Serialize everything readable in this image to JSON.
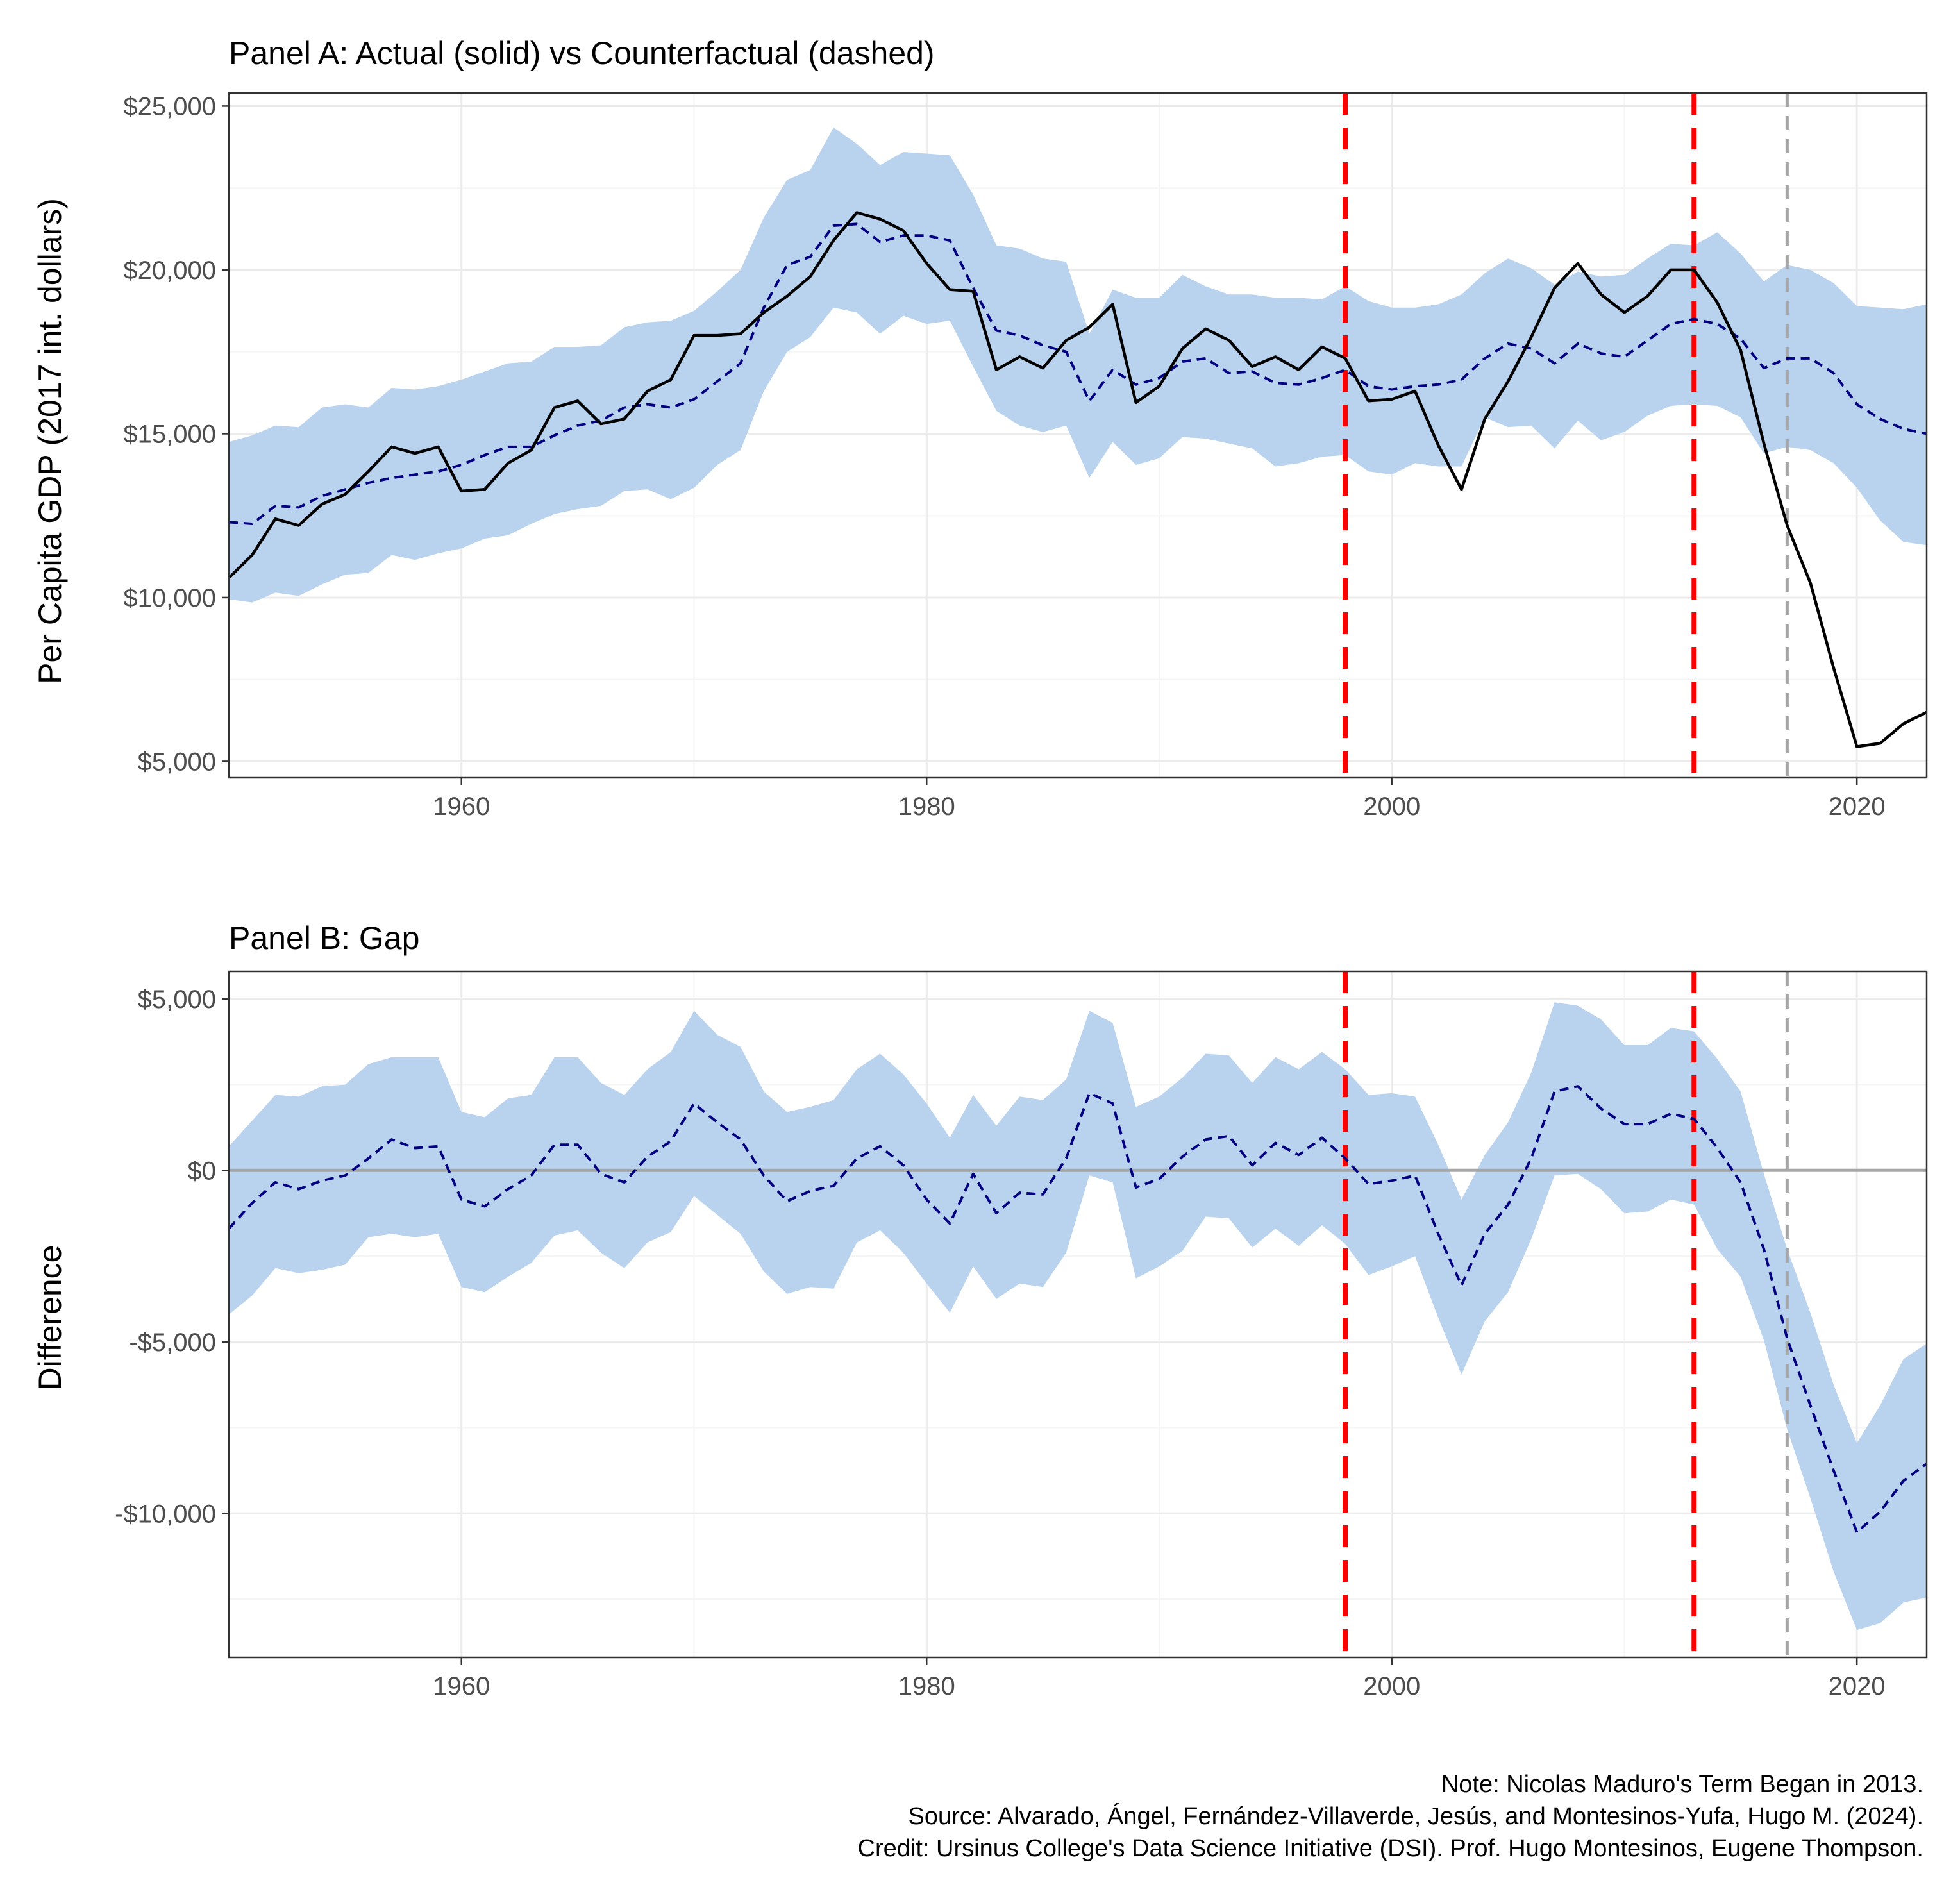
{
  "colors": {
    "actual_line": "#000000",
    "counterfactual_line": "#000080",
    "ci_band": "#b9d3ef",
    "event_line": "#ff0000",
    "marker_line": "#a6a6a6",
    "zero_line": "#a6a6a6",
    "grid_major": "#ebebeb",
    "grid_minor": "#f5f5f5",
    "panel_border": "#333333"
  },
  "caption": {
    "lines": [
      "Note: Nicolas Maduro's Term Began in 2013.",
      "Source: Alvarado, Ángel, Fernández-Villaverde, Jesús, and Montesinos-Yufa, Hugo M. (2024).",
      "Credit: Ursinus College's Data Science Initiative (DSI). Prof. Hugo Montesinos, Eugene Thompson."
    ]
  },
  "chart_data": [
    {
      "type": "line",
      "title": "Panel A: Actual (solid) vs Counterfactual (dashed)",
      "xlabel": "",
      "ylabel": "Per Capita GDP (2017 int. dollars)",
      "xlim": [
        1950,
        2023
      ],
      "ylim": [
        4500,
        25400
      ],
      "x_ticks": [
        1960,
        1980,
        2000,
        2020
      ],
      "x_tick_labels": [
        "1960",
        "1980",
        "2000",
        "2020"
      ],
      "y_ticks": [
        5000,
        10000,
        15000,
        20000,
        25000
      ],
      "y_tick_labels": [
        "$5,000",
        "$10,000",
        "$15,000",
        "$20,000",
        "$25,000"
      ],
      "grid": true,
      "vlines": [
        {
          "x": 1998,
          "color": "#ff0000",
          "style": "dashed",
          "width": "thick"
        },
        {
          "x": 2013,
          "color": "#ff0000",
          "style": "dashed",
          "width": "thick"
        },
        {
          "x": 2017,
          "color": "#a6a6a6",
          "style": "dashed",
          "width": "thin"
        }
      ],
      "x": [
        1950,
        1951,
        1952,
        1953,
        1954,
        1955,
        1956,
        1957,
        1958,
        1959,
        1960,
        1961,
        1962,
        1963,
        1964,
        1965,
        1966,
        1967,
        1968,
        1969,
        1970,
        1971,
        1972,
        1973,
        1974,
        1975,
        1976,
        1977,
        1978,
        1979,
        1980,
        1981,
        1982,
        1983,
        1984,
        1985,
        1986,
        1987,
        1988,
        1989,
        1990,
        1991,
        1992,
        1993,
        1994,
        1995,
        1996,
        1997,
        1998,
        1999,
        2000,
        2001,
        2002,
        2003,
        2004,
        2005,
        2006,
        2007,
        2008,
        2009,
        2010,
        2011,
        2012,
        2013,
        2014,
        2015,
        2016,
        2017,
        2018,
        2019,
        2020,
        2021,
        2022,
        2023
      ],
      "series": [
        {
          "style": "solid",
          "values": [
            10600,
            11300,
            12400,
            12200,
            12850,
            13150,
            13850,
            14600,
            14400,
            14600,
            13250,
            13300,
            14100,
            14500,
            15800,
            16000,
            15300,
            15450,
            16300,
            16650,
            18000,
            18000,
            18050,
            18700,
            19200,
            19800,
            20900,
            21750,
            21550,
            21200,
            20200,
            19400,
            19350,
            16950,
            17350,
            17000,
            17850,
            18250,
            18950,
            15950,
            16450,
            17600,
            18200,
            17850,
            17050,
            17350,
            16950,
            17650,
            17300,
            16000,
            16050,
            16300,
            14650,
            13300,
            15450,
            16600,
            17950,
            19450,
            20200,
            19250,
            18700,
            19200,
            20000,
            20000,
            19000,
            17550,
            14700,
            12200,
            10450,
            7850,
            5450,
            5550,
            6150,
            6500
          ]
        },
        {
          "style": "dashed",
          "values": [
            12300,
            12250,
            12800,
            12750,
            13100,
            13300,
            13500,
            13650,
            13750,
            13850,
            14050,
            14350,
            14600,
            14600,
            14950,
            15250,
            15400,
            15800,
            15900,
            15800,
            16050,
            16600,
            17150,
            18850,
            20150,
            20400,
            21350,
            21400,
            20850,
            21050,
            21050,
            20900,
            19450,
            18150,
            18000,
            17700,
            17500,
            16000,
            16950,
            16500,
            16700,
            17200,
            17300,
            16850,
            16900,
            16550,
            16500,
            16700,
            16950,
            16450,
            16350,
            16450,
            16500,
            16650,
            17300,
            17750,
            17600,
            17150,
            17750,
            17450,
            17350,
            17850,
            18350,
            18500,
            18350,
            17900,
            17000,
            17300,
            17300,
            16850,
            15900,
            15450,
            15150,
            15000
          ]
        }
      ],
      "band": {
        "lower": [
          9950,
          9850,
          10150,
          10050,
          10400,
          10700,
          10750,
          11300,
          11150,
          11350,
          11500,
          11800,
          11900,
          12250,
          12550,
          12700,
          12800,
          13250,
          13300,
          13000,
          13350,
          14050,
          14500,
          16300,
          17500,
          17950,
          18850,
          18700,
          18050,
          18600,
          18350,
          18450,
          17050,
          15700,
          15250,
          15050,
          15250,
          13650,
          14750,
          14050,
          14250,
          14900,
          14850,
          14700,
          14550,
          14000,
          14100,
          14300,
          14350,
          13850,
          13750,
          14100,
          14000,
          14000,
          15500,
          15200,
          15250,
          14550,
          15400,
          14800,
          15050,
          15550,
          15850,
          15900,
          15850,
          15500,
          14400,
          14600,
          14500,
          14100,
          13350,
          12350,
          11700,
          11600
        ],
        "upper": [
          14750,
          14950,
          15250,
          15200,
          15800,
          15900,
          15800,
          16400,
          16350,
          16450,
          16650,
          16900,
          17150,
          17200,
          17650,
          17650,
          17700,
          18250,
          18400,
          18450,
          18750,
          19350,
          20000,
          21600,
          22750,
          23050,
          24350,
          23850,
          23200,
          23600,
          23550,
          23500,
          22300,
          20750,
          20650,
          20350,
          20250,
          18050,
          19400,
          19150,
          19150,
          19850,
          19500,
          19250,
          19250,
          19150,
          19150,
          19100,
          19500,
          19050,
          18850,
          18850,
          18950,
          19250,
          19900,
          20350,
          20050,
          19550,
          19950,
          19800,
          19850,
          20350,
          20800,
          20750,
          21150,
          20500,
          19650,
          20150,
          20000,
          19600,
          18900,
          18850,
          18800,
          18950
        ]
      }
    },
    {
      "type": "line",
      "title": "Panel B: Gap",
      "xlabel": "",
      "ylabel": "Difference",
      "xlim": [
        1950,
        2023
      ],
      "ylim": [
        -14200,
        5800
      ],
      "x_ticks": [
        1960,
        1980,
        2000,
        2020
      ],
      "x_tick_labels": [
        "1960",
        "1980",
        "2000",
        "2020"
      ],
      "y_ticks": [
        -10000,
        -5000,
        0,
        5000
      ],
      "y_tick_labels": [
        "-$10,000",
        "-$5,000",
        "$0",
        "$5,000"
      ],
      "grid": true,
      "hline": {
        "y": 0,
        "color": "#a6a6a6"
      },
      "vlines": [
        {
          "x": 1998,
          "color": "#ff0000",
          "style": "dashed",
          "width": "thick"
        },
        {
          "x": 2013,
          "color": "#ff0000",
          "style": "dashed",
          "width": "thick"
        },
        {
          "x": 2017,
          "color": "#a6a6a6",
          "style": "dashed",
          "width": "thin"
        }
      ],
      "x": [
        1950,
        1951,
        1952,
        1953,
        1954,
        1955,
        1956,
        1957,
        1958,
        1959,
        1960,
        1961,
        1962,
        1963,
        1964,
        1965,
        1966,
        1967,
        1968,
        1969,
        1970,
        1971,
        1972,
        1973,
        1974,
        1975,
        1976,
        1977,
        1978,
        1979,
        1980,
        1981,
        1982,
        1983,
        1984,
        1985,
        1986,
        1987,
        1988,
        1989,
        1990,
        1991,
        1992,
        1993,
        1994,
        1995,
        1996,
        1997,
        1998,
        1999,
        2000,
        2001,
        2002,
        2003,
        2004,
        2005,
        2006,
        2007,
        2008,
        2009,
        2010,
        2011,
        2012,
        2013,
        2014,
        2015,
        2016,
        2017,
        2018,
        2019,
        2020,
        2021,
        2022,
        2023
      ],
      "series": [
        {
          "style": "dashed",
          "values": [
            -1700,
            -950,
            -350,
            -550,
            -300,
            -150,
            350,
            900,
            650,
            700,
            -850,
            -1050,
            -550,
            -150,
            750,
            750,
            -100,
            -350,
            400,
            850,
            1950,
            1400,
            900,
            -150,
            -900,
            -600,
            -450,
            350,
            700,
            150,
            -850,
            -1550,
            -100,
            -1250,
            -650,
            -700,
            350,
            2250,
            1950,
            -500,
            -250,
            400,
            900,
            1000,
            150,
            800,
            450,
            950,
            350,
            -400,
            -300,
            -150,
            -1850,
            -3350,
            -1850,
            -1000,
            350,
            2300,
            2450,
            1800,
            1350,
            1350,
            1650,
            1500,
            650,
            -350,
            -2300,
            -4900,
            -6850,
            -8750,
            -10550,
            -9950,
            -9050,
            -8550
          ]
        }
      ],
      "band": {
        "lower": [
          -4200,
          -3650,
          -2850,
          -3000,
          -2900,
          -2750,
          -1950,
          -1850,
          -1950,
          -1850,
          -3400,
          -3550,
          -3100,
          -2700,
          -1900,
          -1750,
          -2400,
          -2850,
          -2100,
          -1800,
          -750,
          -1300,
          -1850,
          -2950,
          -3600,
          -3400,
          -3450,
          -2100,
          -1750,
          -2400,
          -3300,
          -4150,
          -2800,
          -3750,
          -3300,
          -3400,
          -2400,
          -150,
          -350,
          -3150,
          -2800,
          -2350,
          -1350,
          -1400,
          -2250,
          -1700,
          -2200,
          -1600,
          -2150,
          -3050,
          -2800,
          -2500,
          -4300,
          -5950,
          -4400,
          -3550,
          -2000,
          -150,
          -100,
          -550,
          -1250,
          -1200,
          -850,
          -1000,
          -2300,
          -3100,
          -4950,
          -7550,
          -9550,
          -11700,
          -13400,
          -13200,
          -12600,
          -12450
        ],
        "upper": [
          700,
          1450,
          2200,
          2150,
          2450,
          2500,
          3100,
          3300,
          3300,
          3300,
          1700,
          1550,
          2100,
          2200,
          3300,
          3300,
          2550,
          2200,
          2950,
          3450,
          4650,
          3950,
          3600,
          2300,
          1700,
          1850,
          2050,
          2950,
          3400,
          2800,
          1950,
          950,
          2200,
          1300,
          2150,
          2050,
          2650,
          4650,
          4300,
          1850,
          2150,
          2700,
          3400,
          3350,
          2550,
          3300,
          2950,
          3450,
          2950,
          2200,
          2250,
          2150,
          750,
          -850,
          450,
          1400,
          2850,
          4900,
          4800,
          4400,
          3650,
          3650,
          4150,
          4050,
          3250,
          2300,
          -100,
          -2300,
          -4150,
          -6250,
          -7950,
          -6850,
          -5500,
          -5050
        ]
      }
    }
  ]
}
